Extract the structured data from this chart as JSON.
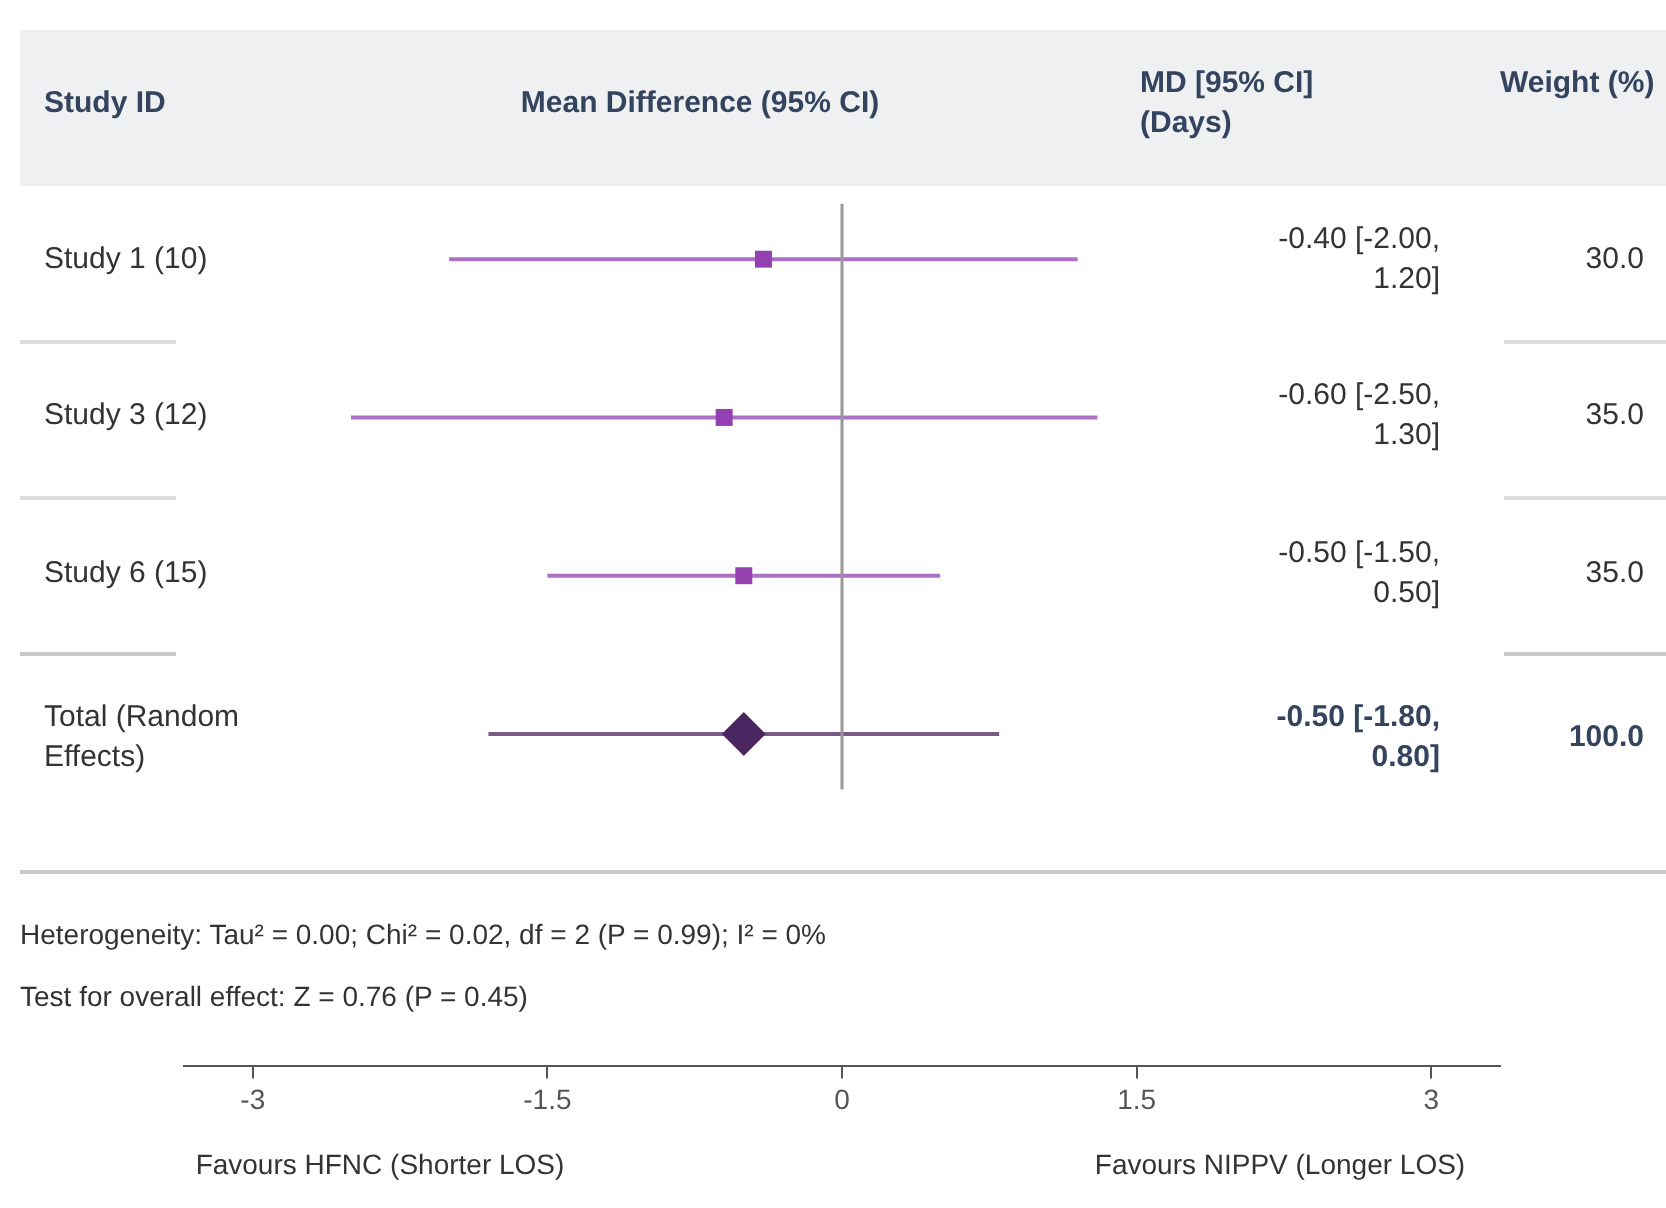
{
  "chart_data": {
    "type": "scatter",
    "orientation": "horizontal",
    "title": "Mean Difference (95% CI)",
    "ylabel": "Study ID",
    "categories": [
      "Study 1 (10)",
      "Study 3 (12)",
      "Study 6 (15)",
      "Total (Random Effects)"
    ],
    "series": [
      {
        "color": "#9340b0",
        "marker": "square",
        "values": [
          -0.4,
          -0.6,
          -0.5,
          null
        ],
        "errors": [
          [
            -2.0,
            1.2
          ],
          [
            -2.5,
            1.3
          ],
          [
            -1.5,
            0.5
          ],
          null
        ]
      },
      {
        "color": "#4a2660",
        "marker": "diamond",
        "values": [
          null,
          null,
          null,
          -0.5
        ],
        "errors": [
          null,
          null,
          null,
          [
            -1.8,
            0.8
          ]
        ]
      }
    ],
    "xlim": [
      -3.35,
      3.35
    ],
    "xticks": [
      -3,
      -1.5,
      0,
      1.5,
      3
    ],
    "grid": false,
    "legend": false,
    "ref_lines": [
      {
        "axis": "x",
        "value": 0,
        "color": "#999999"
      }
    ],
    "annotations": [
      "MD [95% CI] (Days)",
      "Weight (%)",
      "30.0",
      "35.0",
      "35.0",
      "100.0",
      "-0.40 [-2.00, 1.20]",
      "-0.60 [-2.50, 1.30]",
      "-0.50 [-1.50, 0.50]",
      "-0.50 [-1.80, 0.80]",
      "Heterogeneity: Tau² = 0.00; Chi² = 0.02, df = 2 (P = 0.99); I² = 0%",
      "Test for overall effect: Z = 0.76 (P = 0.45)",
      "Favours HFNC (Shorter LOS)",
      "Favours NIPPV (Longer LOS)"
    ]
  }
}
